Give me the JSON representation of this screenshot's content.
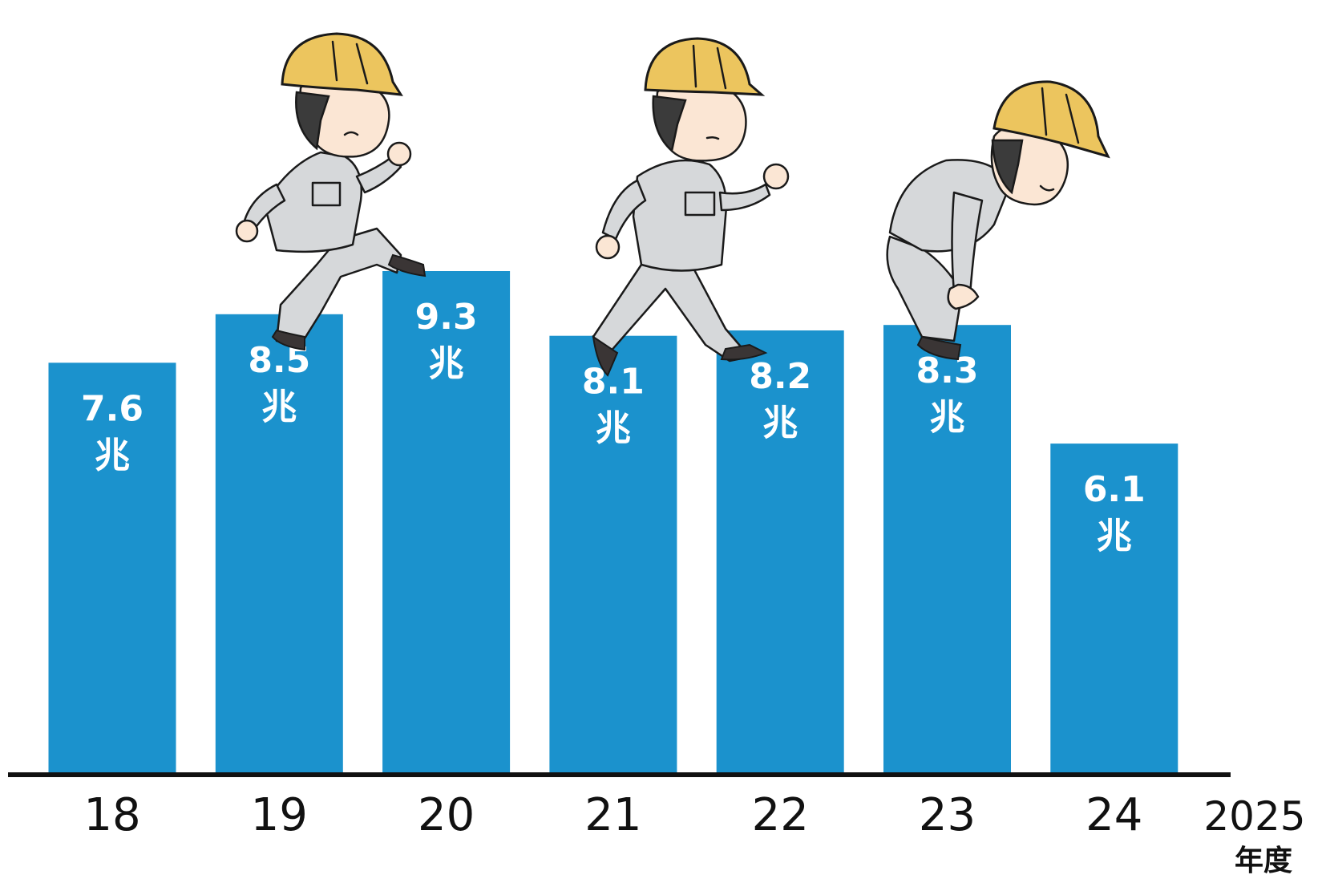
{
  "chart_data": {
    "type": "bar",
    "categories": [
      "18",
      "19",
      "20",
      "21",
      "22",
      "23",
      "24"
    ],
    "values": [
      7.6,
      8.5,
      9.3,
      8.1,
      8.2,
      8.3,
      6.1
    ],
    "value_labels": [
      "7.6",
      "8.5",
      "9.3",
      "8.1",
      "8.2",
      "8.3",
      "6.1"
    ],
    "value_unit": "兆",
    "x_axis_end_label": "2025",
    "x_axis_unit": "年度",
    "title": "",
    "xlabel": "",
    "ylabel": "",
    "ylim": [
      0,
      10
    ],
    "grid": false,
    "legend": "none"
  },
  "colors": {
    "bar": "#1b92cd",
    "axis": "#111111",
    "label": "#ffffff"
  },
  "illustrations": [
    "worker-climbing-icon",
    "worker-walking-icon",
    "worker-tired-icon"
  ]
}
